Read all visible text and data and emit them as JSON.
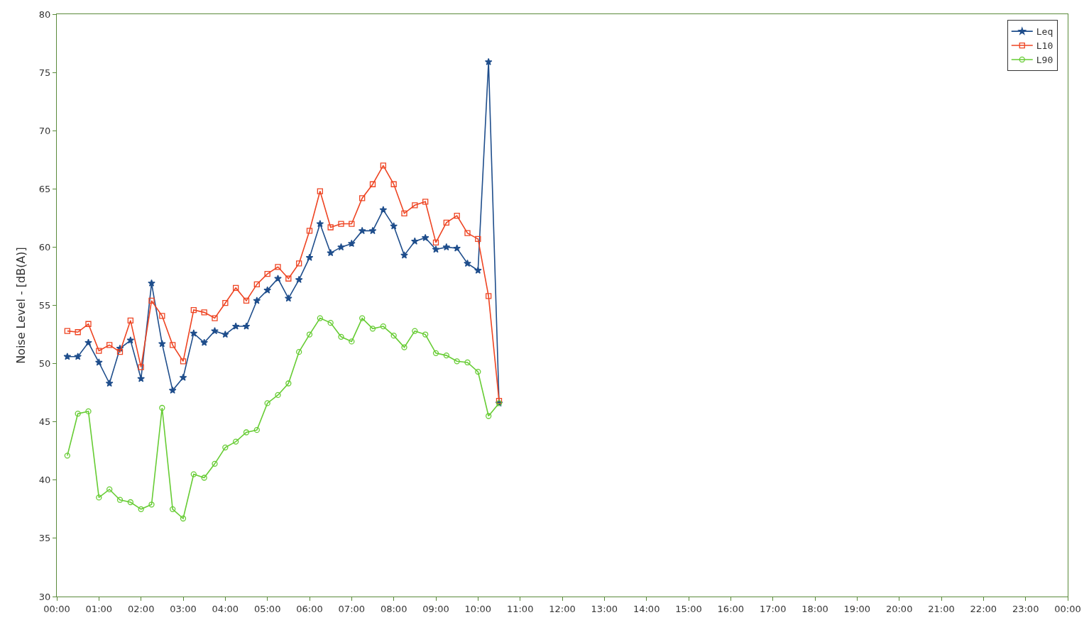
{
  "chart_data": {
    "type": "line",
    "ylabel": "Noise Level - [dB(A)]",
    "x": [
      0.25,
      0.5,
      0.75,
      1,
      1.25,
      1.5,
      1.75,
      2,
      2.25,
      2.5,
      2.75,
      3,
      3.25,
      3.5,
      3.75,
      4,
      4.25,
      4.5,
      4.75,
      5,
      5.25,
      5.5,
      5.75,
      6,
      6.25,
      6.5,
      6.75,
      7,
      7.25,
      7.5,
      7.75,
      8,
      8.25,
      8.5,
      8.75,
      9,
      9.25,
      9.5,
      9.75,
      10,
      10.25,
      10.5
    ],
    "series": [
      {
        "name": "Leq",
        "color": "#1f4e8c",
        "marker": "star",
        "values": [
          50.6,
          50.6,
          51.8,
          50.1,
          48.3,
          51.3,
          52.0,
          48.7,
          56.9,
          51.7,
          47.7,
          48.8,
          52.6,
          51.8,
          52.8,
          52.5,
          53.2,
          53.2,
          55.4,
          56.3,
          57.3,
          55.6,
          57.2,
          59.1,
          62.0,
          59.5,
          60.0,
          60.3,
          61.4,
          61.4,
          63.2,
          61.8,
          59.3,
          60.5,
          60.8,
          59.8,
          60.0,
          59.9,
          58.6,
          58.0,
          75.9,
          46.6
        ]
      },
      {
        "name": "L10",
        "color": "#ee4422",
        "marker": "square",
        "values": [
          52.8,
          52.7,
          53.4,
          51.1,
          51.6,
          51.0,
          53.7,
          49.7,
          55.4,
          54.1,
          51.6,
          50.2,
          54.6,
          54.4,
          53.9,
          55.2,
          56.5,
          55.4,
          56.8,
          57.7,
          58.3,
          57.3,
          58.6,
          61.4,
          64.8,
          61.7,
          62.0,
          62.0,
          64.2,
          65.4,
          67.0,
          65.4,
          62.9,
          63.6,
          63.9,
          60.4,
          62.1,
          62.7,
          61.2,
          60.7,
          55.8,
          46.8
        ]
      },
      {
        "name": "L90",
        "color": "#66cc33",
        "marker": "circle",
        "values": [
          42.1,
          45.7,
          45.9,
          38.5,
          39.2,
          38.3,
          38.1,
          37.5,
          37.9,
          46.2,
          37.5,
          36.7,
          40.5,
          40.2,
          41.4,
          42.8,
          43.3,
          44.1,
          44.3,
          46.6,
          47.3,
          48.3,
          51.0,
          52.5,
          53.9,
          53.5,
          52.3,
          51.9,
          53.9,
          53.0,
          53.2,
          52.4,
          51.4,
          52.8,
          52.5,
          50.9,
          50.7,
          50.2,
          50.1,
          49.3,
          45.5,
          46.6
        ]
      }
    ],
    "xlim": [
      0,
      24
    ],
    "xticks": [
      {
        "value": 0,
        "label": "00:00"
      },
      {
        "value": 1,
        "label": "01:00"
      },
      {
        "value": 2,
        "label": "02:00"
      },
      {
        "value": 3,
        "label": "03:00"
      },
      {
        "value": 4,
        "label": "04:00"
      },
      {
        "value": 5,
        "label": "05:00"
      },
      {
        "value": 6,
        "label": "06:00"
      },
      {
        "value": 7,
        "label": "07:00"
      },
      {
        "value": 8,
        "label": "08:00"
      },
      {
        "value": 9,
        "label": "09:00"
      },
      {
        "value": 10,
        "label": "10:00"
      },
      {
        "value": 11,
        "label": "11:00"
      },
      {
        "value": 12,
        "label": "12:00"
      },
      {
        "value": 13,
        "label": "13:00"
      },
      {
        "value": 14,
        "label": "14:00"
      },
      {
        "value": 15,
        "label": "15:00"
      },
      {
        "value": 16,
        "label": "16:00"
      },
      {
        "value": 17,
        "label": "17:00"
      },
      {
        "value": 18,
        "label": "18:00"
      },
      {
        "value": 19,
        "label": "19:00"
      },
      {
        "value": 20,
        "label": "20:00"
      },
      {
        "value": 21,
        "label": "21:00"
      },
      {
        "value": 22,
        "label": "22:00"
      },
      {
        "value": 23,
        "label": "23:00"
      },
      {
        "value": 24,
        "label": "00:00"
      }
    ],
    "ylim": [
      30,
      80
    ],
    "yticks": [
      30,
      35,
      40,
      45,
      50,
      55,
      60,
      65,
      70,
      75,
      80
    ],
    "legend": "top right",
    "line_style": "solid"
  }
}
